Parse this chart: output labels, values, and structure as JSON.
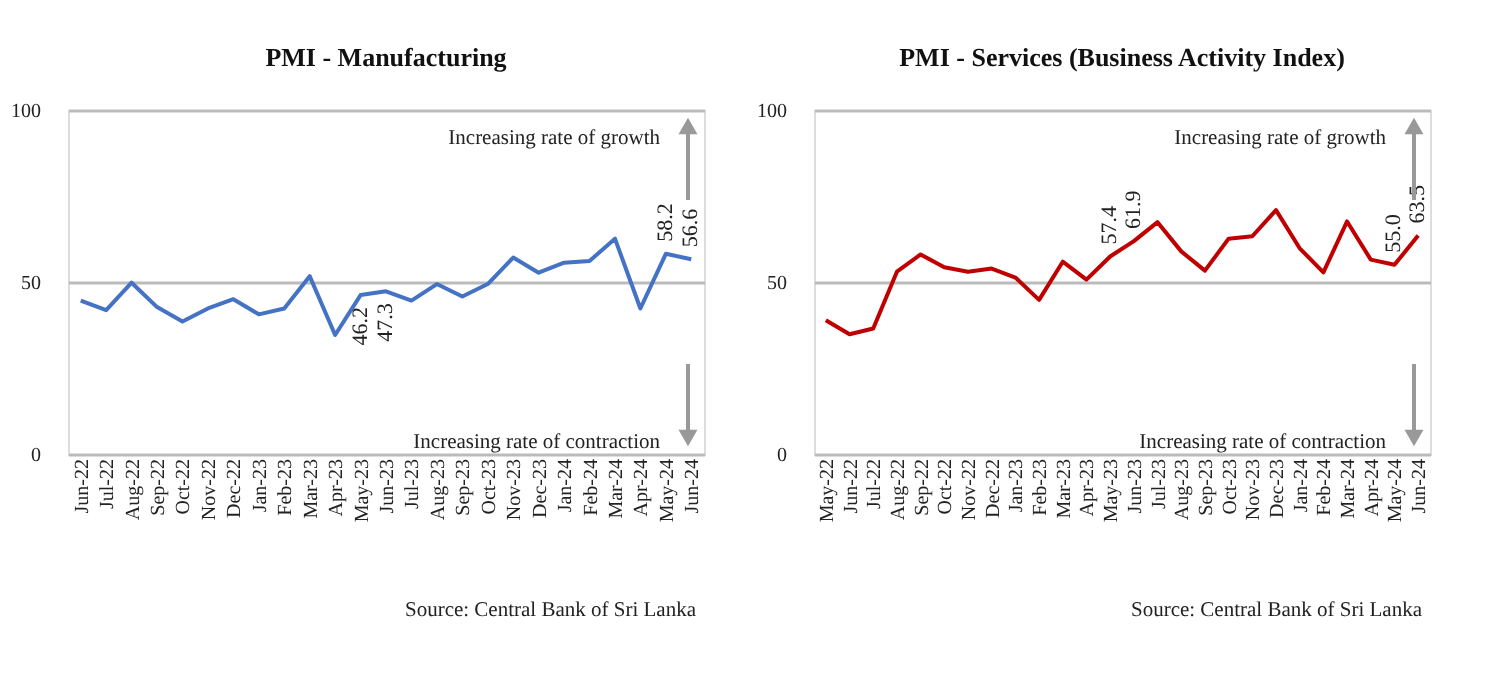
{
  "chart_data": [
    {
      "type": "line",
      "title": "PMI - Manufacturing",
      "categories": [
        "Jun-22",
        "Jul-22",
        "Aug-22",
        "Sep-22",
        "Oct-22",
        "Nov-22",
        "Dec-22",
        "Jan-23",
        "Feb-23",
        "Mar-23",
        "Apr-23",
        "May-23",
        "Jun-23",
        "Jul-23",
        "Aug-23",
        "Sep-23",
        "Oct-23",
        "Nov-23",
        "Dec-23",
        "Jan-24",
        "Feb-24",
        "Mar-24",
        "Apr-24",
        "May-24",
        "Jun-24"
      ],
      "series": [
        {
          "color": "#4472c4",
          "values": [
            44.6,
            41.8,
            49.8,
            42.7,
            38.5,
            42.3,
            45.0,
            40.6,
            42.3,
            51.7,
            34.6,
            46.2,
            47.3,
            44.6,
            49.4,
            45.8,
            49.4,
            57.1,
            52.7,
            55.6,
            56.1,
            62.6,
            42.3,
            58.2,
            56.6
          ],
          "value_labels": [
            null,
            null,
            null,
            null,
            null,
            null,
            null,
            null,
            null,
            null,
            null,
            "46.2",
            "47.3",
            null,
            null,
            null,
            null,
            null,
            null,
            null,
            null,
            null,
            null,
            "58.2",
            "56.6"
          ]
        }
      ],
      "ylim": [
        0,
        100
      ],
      "yticks": [
        0,
        50,
        100
      ],
      "grid": "y",
      "annotations": [
        "Increasing rate of growth",
        "Increasing rate of contraction",
        "Source: Central Bank of Sri Lanka"
      ]
    },
    {
      "type": "line",
      "title": "PMI - Services (Business Activity Index)",
      "categories": [
        "May-22",
        "Jun-22",
        "Jul-22",
        "Aug-22",
        "Sep-22",
        "Oct-22",
        "Nov-22",
        "Dec-22",
        "Jan-23",
        "Feb-23",
        "Mar-23",
        "Apr-23",
        "May-23",
        "Jun-23",
        "Jul-23",
        "Aug-23",
        "Sep-23",
        "Oct-23",
        "Nov-23",
        "Dec-23",
        "Jan-24",
        "Feb-24",
        "Mar-24",
        "Apr-24",
        "May-24",
        "Jun-24"
      ],
      "series": [
        {
          "color": "#c00000",
          "values": [
            38.9,
            34.8,
            36.5,
            53.0,
            58.0,
            54.3,
            53.0,
            53.9,
            51.3,
            44.8,
            55.9,
            50.7,
            57.4,
            61.9,
            67.4,
            58.9,
            53.3,
            62.6,
            63.3,
            70.9,
            59.8,
            52.8,
            67.6,
            56.5,
            55.0,
            63.5
          ],
          "value_labels": [
            null,
            null,
            null,
            null,
            null,
            null,
            null,
            null,
            null,
            null,
            null,
            null,
            "57.4",
            "61.9",
            null,
            null,
            null,
            null,
            null,
            null,
            null,
            null,
            null,
            null,
            "55.0",
            "63.5"
          ]
        }
      ],
      "ylim": [
        0,
        100
      ],
      "yticks": [
        0,
        50,
        100
      ],
      "grid": "y",
      "annotations": [
        "Increasing rate of growth",
        "Increasing rate of contraction",
        "Source: Central Bank of Sri Lanka"
      ]
    }
  ]
}
